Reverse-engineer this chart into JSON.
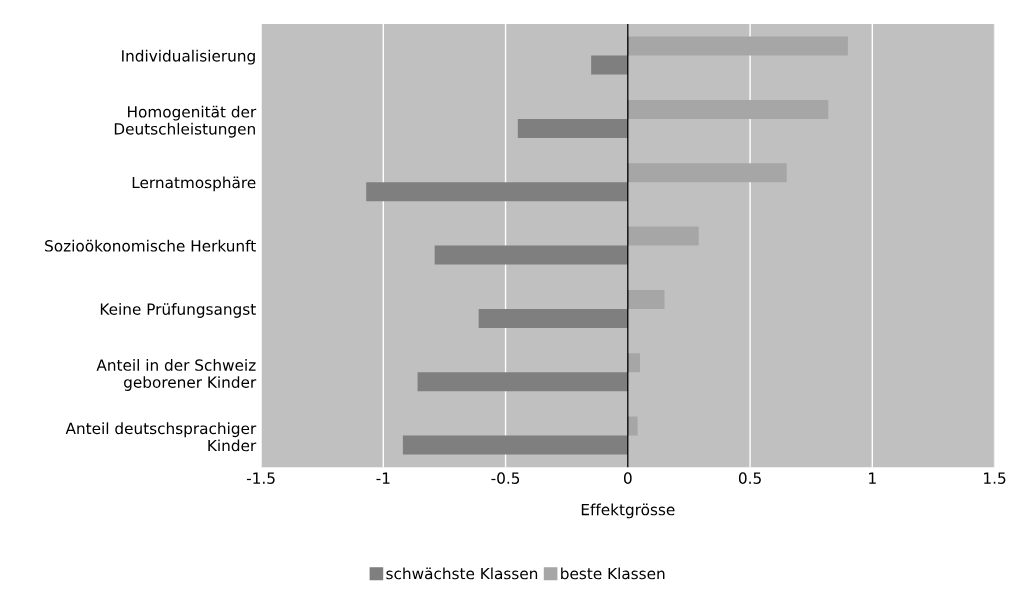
{
  "chart_data": {
    "type": "bar",
    "orientation": "horizontal",
    "categories": [
      "Individualisierung",
      "Homogenität der\nDeutschleistungen",
      "Lernatmosphäre",
      "Sozioökonomische Herkunft",
      "Keine Prüfungsangst",
      "Anteil in der Schweiz\ngeborener Kinder",
      "Anteil deutschsprachiger\nKinder"
    ],
    "series": [
      {
        "name": "schwächste Klassen",
        "color": "#7f7f7f",
        "values": [
          -0.15,
          -0.45,
          -1.07,
          -0.79,
          -0.61,
          -0.86,
          -0.92
        ]
      },
      {
        "name": "beste Klassen",
        "color": "#a6a6a6",
        "values": [
          0.9,
          0.82,
          0.65,
          0.29,
          0.15,
          0.05,
          0.04
        ]
      }
    ],
    "xlabel": "Effektgrösse",
    "xlim": [
      -1.5,
      1.5
    ],
    "xticks": [
      -1.5,
      -1,
      -0.5,
      0,
      0.5,
      1,
      1.5
    ],
    "ref_lines": [
      {
        "axis": "x",
        "value": 0,
        "color": "#000000"
      }
    ],
    "grid": "x",
    "legend": "bottom"
  }
}
